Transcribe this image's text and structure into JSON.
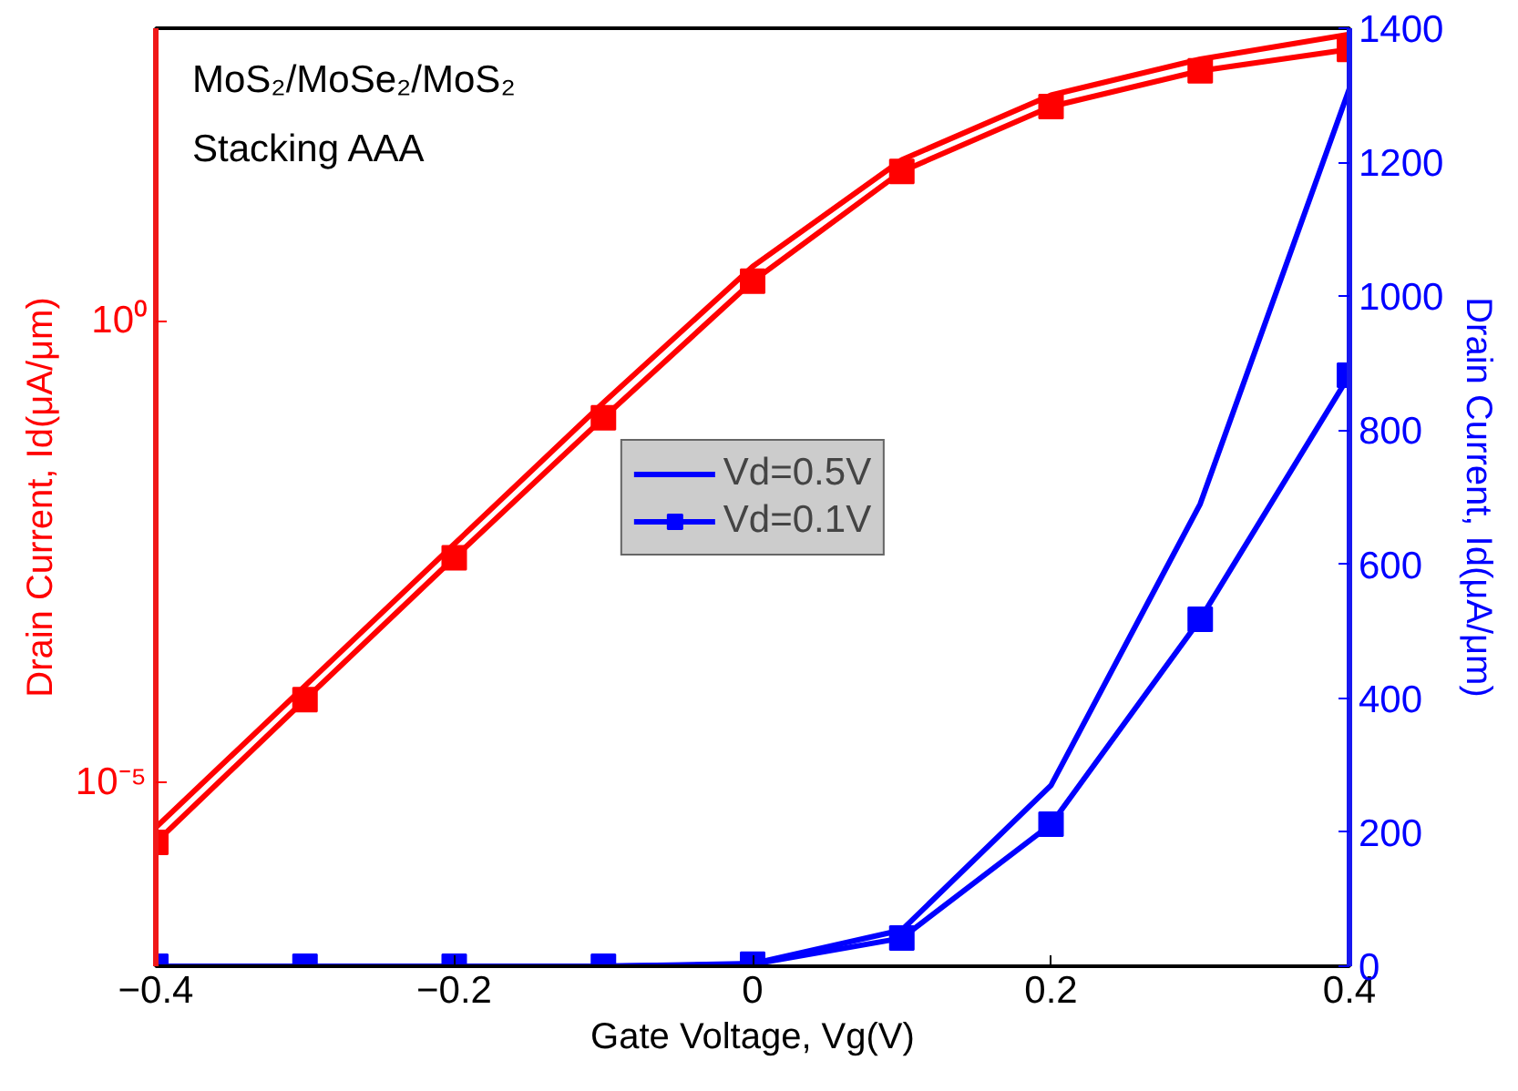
{
  "chart_data": {
    "type": "line",
    "xlabel": "Gate Voltage, Vg(V)",
    "ylabel": "Drain Current, Id(μA/μm)",
    "y2label": "Drain Current, Id(μA/μm)",
    "x": [
      -0.4,
      -0.3,
      -0.2,
      -0.1,
      0,
      0.1,
      0.2,
      0.3,
      0.4
    ],
    "xlim": [
      -0.4,
      0.4
    ],
    "xticks": [
      -0.4,
      -0.2,
      0,
      0.2,
      0.4
    ],
    "log": "y",
    "ylim": [
      1e-07,
      1500
    ],
    "yticks": [
      {
        "value": 1e-05,
        "label": "10⁻⁵"
      },
      {
        "value": 1,
        "label": "10⁰"
      }
    ],
    "y2lim": [
      0,
      1400
    ],
    "y2ticks": [
      0,
      200,
      400,
      600,
      800,
      1000,
      1200,
      1400
    ],
    "annotations": [
      "MoS₂/MoSe₂/MoS₂",
      "Stacking AAA"
    ],
    "grid": false,
    "legend": "center",
    "series": [
      {
        "color": "#ff0000",
        "marker": "none",
        "values": [
          3.2e-06,
          0.00011,
          0.0038,
          0.13,
          3.9,
          56,
          282,
          692,
          1290
        ]
      },
      {
        "color": "#ff0000",
        "marker": "square",
        "values": [
          2.2e-06,
          7.8e-05,
          0.0027,
          0.089,
          2.7,
          42,
          212,
          518,
          882
        ]
      },
      {
        "name": "Vd=0.5V",
        "color": "#0000ff",
        "marker": "none",
        "axis": "y2",
        "values": [
          0,
          0,
          0,
          0,
          4,
          54,
          270,
          690,
          1310
        ]
      },
      {
        "name": "Vd=0.1V",
        "color": "#0000ff",
        "marker": "square",
        "axis": "y2",
        "values": [
          0,
          0,
          0,
          0,
          3,
          42,
          212,
          518,
          882
        ]
      }
    ]
  }
}
